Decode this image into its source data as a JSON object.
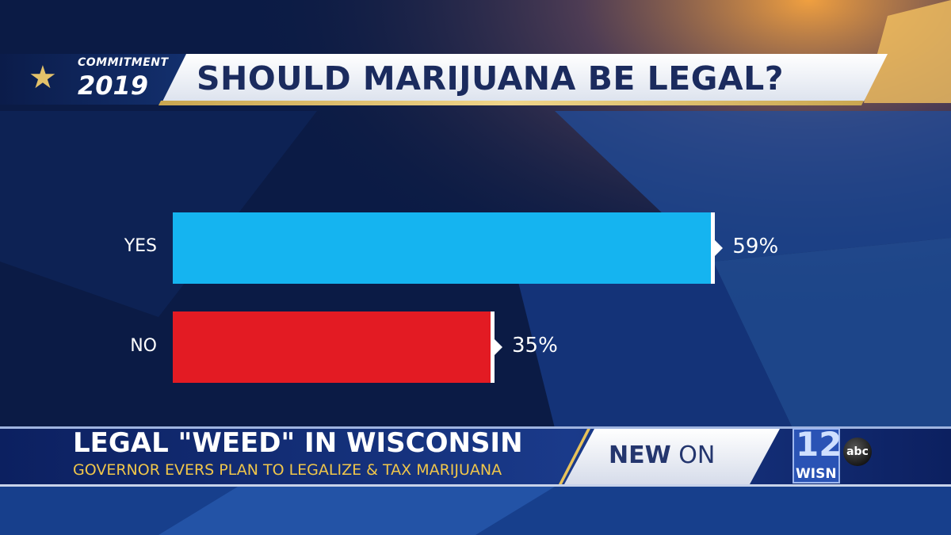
{
  "header": {
    "brand_top": "COMMITMENT",
    "brand_year": "2019",
    "title": "SHOULD MARIJUANA BE LEGAL?"
  },
  "chart_data": {
    "type": "bar",
    "orientation": "horizontal",
    "title": "SHOULD MARIJUANA BE LEGAL?",
    "categories": [
      "YES",
      "NO"
    ],
    "values": [
      59,
      35
    ],
    "value_labels": [
      "59%",
      "35%"
    ],
    "colors": [
      "#15b4f0",
      "#e31b23"
    ],
    "xlim": [
      0,
      100
    ],
    "grid": false
  },
  "lower_third": {
    "headline": "LEGAL \"WEED\" IN WISCONSIN",
    "subhead": "GOVERNOR EVERS PLAN TO LEGALIZE & TAX MARIJUANA",
    "tag_bold": "NEW",
    "tag_rest": " ON"
  },
  "logo": {
    "channel": "12",
    "station": "WISN",
    "network": "abc"
  }
}
